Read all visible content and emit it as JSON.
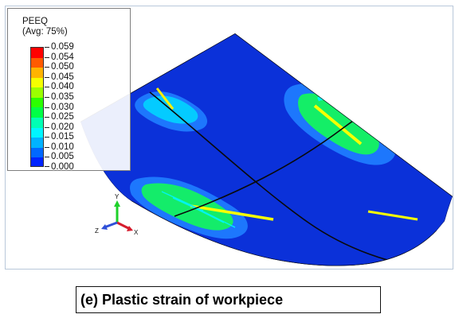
{
  "legend": {
    "title_line1": "PEEQ",
    "title_line2": "(Avg: 75%)",
    "values": [
      "0.059",
      "0.054",
      "0.050",
      "0.045",
      "0.040",
      "0.035",
      "0.030",
      "0.025",
      "0.020",
      "0.015",
      "0.010",
      "0.005",
      "0.000"
    ],
    "swatch_colors": [
      "#ff0000",
      "#ff5a00",
      "#ffb400",
      "#f5ff00",
      "#9bff00",
      "#2cff00",
      "#00ff46",
      "#00ffb4",
      "#00f6ff",
      "#00b2ff",
      "#0068ff",
      "#0024ff"
    ]
  },
  "triad": {
    "x_label": "X",
    "y_label": "Y",
    "z_label": "Z",
    "x_color": "#d61d2e",
    "y_color": "#1ed12a",
    "z_color": "#2f50d8"
  },
  "model": {
    "base_color": "#0b31d9"
  },
  "caption": {
    "text": "(e) Plastic strain of workpiece"
  }
}
